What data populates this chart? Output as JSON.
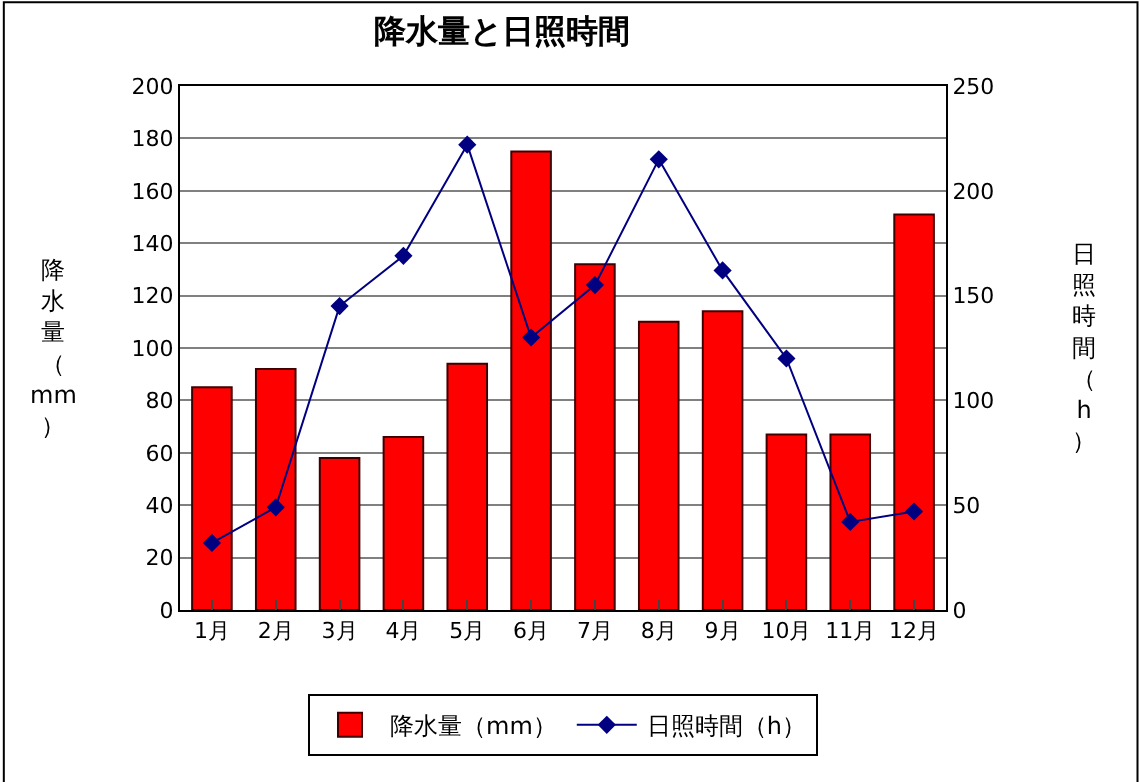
{
  "chart_data": {
    "type": "bar",
    "title": "降水量と日照時間",
    "ylabel": "降水量（mm）",
    "y2label": "日照時間（h）",
    "categories": [
      "1月",
      "2月",
      "3月",
      "4月",
      "5月",
      "6月",
      "7月",
      "8月",
      "9月",
      "10月",
      "11月",
      "12月"
    ],
    "series": [
      {
        "name": "降水量（mm）",
        "color": "#ff0000",
        "values": [
          85,
          92,
          58,
          66,
          94,
          175,
          132,
          110,
          114,
          67,
          67,
          151
        ]
      },
      {
        "name": "日照時間（h）",
        "type": "line",
        "axis": "y2",
        "color": "#000080",
        "marker": "diamond",
        "values": [
          32,
          49,
          145,
          169,
          222,
          130,
          155,
          215,
          162,
          120,
          42,
          47
        ]
      }
    ],
    "ylim": [
      0,
      200
    ],
    "yticks": [
      0,
      20,
      40,
      60,
      80,
      100,
      120,
      140,
      160,
      180,
      200
    ],
    "y2lim": [
      0,
      250
    ],
    "y2ticks": [
      0,
      50,
      100,
      150,
      200,
      250
    ],
    "grid": "y",
    "legend": "bottom"
  }
}
